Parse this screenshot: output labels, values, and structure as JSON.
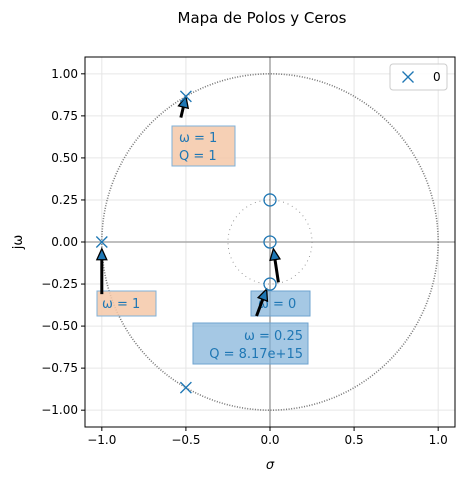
{
  "chart_data": {
    "type": "scatter",
    "title": "Mapa de Polos y Ceros",
    "xlabel": "σ",
    "ylabel": "jω",
    "xlim": [
      -1.1,
      1.1
    ],
    "ylim": [
      -1.1,
      1.1
    ],
    "grid": true,
    "legend_position": "top-right",
    "x_ticks": [
      "−1.0",
      "−0.5",
      "0.0",
      "0.5",
      "1.0"
    ],
    "y_ticks": [
      "−1.00",
      "−0.75",
      "−0.50",
      "−0.25",
      "0.00",
      "0.25",
      "0.50",
      "0.75",
      "1.00"
    ],
    "legend": [
      {
        "label": "0",
        "marker": "x"
      }
    ],
    "poles": [
      {
        "x": -0.5,
        "y": 0.866
      },
      {
        "x": -0.5,
        "y": -0.866
      },
      {
        "x": -1.0,
        "y": 0.0
      }
    ],
    "zeros": [
      {
        "x": 0.0,
        "y": 0.25
      },
      {
        "x": 0.0,
        "y": 0.0
      },
      {
        "x": 0.0,
        "y": -0.25
      }
    ],
    "circles": [
      {
        "r": 1.0,
        "style": "dotted"
      },
      {
        "r": 0.25,
        "style": "dotted-fine"
      }
    ],
    "annotations": [
      {
        "lines": [
          "ω =   1",
          "Q =   1"
        ],
        "style": "orange",
        "arrow_from": [
          -0.53,
          0.74
        ],
        "arrow_to": [
          -0.5,
          0.866
        ]
      },
      {
        "lines": [
          "ω =   1"
        ],
        "style": "orange",
        "arrow_from": [
          -1.0,
          -0.31
        ],
        "arrow_to": [
          -1.0,
          -0.04
        ]
      },
      {
        "lines": [
          "ω =   0"
        ],
        "style": "blue",
        "arrow_from": [
          0.05,
          -0.24
        ],
        "arrow_to": [
          0.02,
          -0.04
        ]
      },
      {
        "lines": [
          "ω = 0.25",
          "Q = 8.17e+15"
        ],
        "style": "blue",
        "arrow_from": [
          -0.08,
          -0.44
        ],
        "arrow_to": [
          -0.02,
          -0.28
        ]
      }
    ],
    "colors": {
      "marker": "#1f77b4",
      "orange_box": "#f4c8a8",
      "blue_box": "#7fb0d8",
      "circle": "#777777",
      "axis_line": "#aaaaaa",
      "grid": "#e6e6e6"
    }
  }
}
